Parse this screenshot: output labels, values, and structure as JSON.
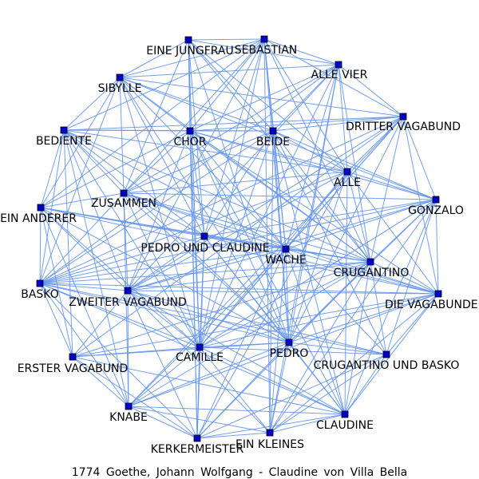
{
  "title": "1774  Goethe,  Johann  Wolfgang  -  Claudine  von  Villa  Bella",
  "colors": {
    "edge": "#6495ED",
    "node": "#0000CC"
  },
  "nodes": [
    {
      "id": "eine_jungfrau",
      "label": "EINE JUNGFRAU"
    },
    {
      "id": "sebastian",
      "label": "SEBASTIAN"
    },
    {
      "id": "alle_vier",
      "label": "ALLE VIER"
    },
    {
      "id": "sibylle",
      "label": "SIBYLLE"
    },
    {
      "id": "dritter_vagabund",
      "label": "DRITTER VAGABUND"
    },
    {
      "id": "bediente",
      "label": "BEDIENTE"
    },
    {
      "id": "chor",
      "label": "CHOR"
    },
    {
      "id": "beide",
      "label": "BEIDE"
    },
    {
      "id": "alle",
      "label": "ALLE"
    },
    {
      "id": "zusammen",
      "label": "ZUSAMMEN"
    },
    {
      "id": "gonzalo",
      "label": "GONZALO"
    },
    {
      "id": "ein_anderer",
      "label": "EIN ANDERER"
    },
    {
      "id": "pedro_und_claudine",
      "label": "PEDRO UND CLAUDINE"
    },
    {
      "id": "wache",
      "label": "WACHE"
    },
    {
      "id": "crugantino",
      "label": "CRUGANTINO"
    },
    {
      "id": "basko",
      "label": "BASKO"
    },
    {
      "id": "zweiter_vagabund",
      "label": "ZWEITER VAGABUND"
    },
    {
      "id": "die_vagabunden",
      "label": "DIE VAGABUNDEN"
    },
    {
      "id": "camille",
      "label": "CAMILLE"
    },
    {
      "id": "pedro",
      "label": "PEDRO"
    },
    {
      "id": "crugantino_und_basko",
      "label": "CRUGANTINO UND BASKO"
    },
    {
      "id": "erster_vagabund",
      "label": "ERSTER VAGABUND"
    },
    {
      "id": "knabe",
      "label": "KNABE"
    },
    {
      "id": "claudine",
      "label": "CLAUDINE"
    },
    {
      "id": "kerkermeister",
      "label": "KERKERMEISTER"
    },
    {
      "id": "ein_kleines",
      "label": "EIN KLEINES"
    }
  ],
  "edges": [
    [
      "sebastian",
      "alle_vier"
    ],
    [
      "sebastian",
      "sibylle"
    ],
    [
      "sebastian",
      "chor"
    ],
    [
      "sebastian",
      "beide"
    ],
    [
      "sebastian",
      "dritter_vagabund"
    ],
    [
      "sebastian",
      "alle"
    ],
    [
      "sebastian",
      "zusammen"
    ],
    [
      "sebastian",
      "bediente"
    ],
    [
      "sebastian",
      "pedro_und_claudine"
    ],
    [
      "sebastian",
      "wache"
    ],
    [
      "sebastian",
      "crugantino"
    ],
    [
      "sebastian",
      "camille"
    ],
    [
      "sebastian",
      "pedro"
    ],
    [
      "sebastian",
      "ein_kleines"
    ],
    [
      "sebastian",
      "zweiter_vagabund"
    ],
    [
      "sebastian",
      "eine_jungfrau"
    ],
    [
      "sebastian",
      "ein_anderer"
    ],
    [
      "eine_jungfrau",
      "sibylle"
    ],
    [
      "eine_jungfrau",
      "chor"
    ],
    [
      "eine_jungfrau",
      "beide"
    ],
    [
      "eine_jungfrau",
      "alle_vier"
    ],
    [
      "eine_jungfrau",
      "pedro_und_claudine"
    ],
    [
      "eine_jungfrau",
      "camille"
    ],
    [
      "eine_jungfrau",
      "zusammen"
    ],
    [
      "eine_jungfrau",
      "crugantino"
    ],
    [
      "eine_jungfrau",
      "alle"
    ],
    [
      "eine_jungfrau",
      "kerkermeister"
    ],
    [
      "eine_jungfrau",
      "pedro"
    ],
    [
      "alle_vier",
      "dritter_vagabund"
    ],
    [
      "alle_vier",
      "beide"
    ],
    [
      "alle_vier",
      "chor"
    ],
    [
      "alle_vier",
      "alle"
    ],
    [
      "alle_vier",
      "wache"
    ],
    [
      "alle_vier",
      "crugantino"
    ],
    [
      "alle_vier",
      "zusammen"
    ],
    [
      "alle_vier",
      "pedro"
    ],
    [
      "alle_vier",
      "camille"
    ],
    [
      "alle_vier",
      "zweiter_vagabund"
    ],
    [
      "alle_vier",
      "ein_kleines"
    ],
    [
      "alle_vier",
      "basko"
    ],
    [
      "alle_vier",
      "sibylle"
    ],
    [
      "sibylle",
      "bediente"
    ],
    [
      "sibylle",
      "chor"
    ],
    [
      "sibylle",
      "beide"
    ],
    [
      "sibylle",
      "zusammen"
    ],
    [
      "sibylle",
      "pedro_und_claudine"
    ],
    [
      "sibylle",
      "wache"
    ],
    [
      "sibylle",
      "crugantino"
    ],
    [
      "sibylle",
      "camille"
    ],
    [
      "sibylle",
      "ein_anderer"
    ],
    [
      "sibylle",
      "basko"
    ],
    [
      "sibylle",
      "pedro"
    ],
    [
      "sibylle",
      "dritter_vagabund"
    ],
    [
      "sibylle",
      "gonzalo"
    ],
    [
      "dritter_vagabund",
      "beide"
    ],
    [
      "dritter_vagabund",
      "alle"
    ],
    [
      "dritter_vagabund",
      "gonzalo"
    ],
    [
      "dritter_vagabund",
      "chor"
    ],
    [
      "dritter_vagabund",
      "wache"
    ],
    [
      "dritter_vagabund",
      "crugantino"
    ],
    [
      "dritter_vagabund",
      "zweiter_vagabund"
    ],
    [
      "dritter_vagabund",
      "erster_vagabund"
    ],
    [
      "dritter_vagabund",
      "die_vagabunden"
    ],
    [
      "dritter_vagabund",
      "pedro"
    ],
    [
      "dritter_vagabund",
      "basko"
    ],
    [
      "dritter_vagabund",
      "bediente"
    ],
    [
      "dritter_vagabund",
      "camille"
    ],
    [
      "dritter_vagabund",
      "knabe"
    ],
    [
      "bediente",
      "chor"
    ],
    [
      "bediente",
      "zusammen"
    ],
    [
      "bediente",
      "ein_anderer"
    ],
    [
      "bediente",
      "basko"
    ],
    [
      "bediente",
      "zweiter_vagabund"
    ],
    [
      "bediente",
      "pedro_und_claudine"
    ],
    [
      "bediente",
      "wache"
    ],
    [
      "bediente",
      "crugantino"
    ],
    [
      "bediente",
      "camille"
    ],
    [
      "bediente",
      "pedro"
    ],
    [
      "bediente",
      "beide"
    ],
    [
      "bediente",
      "erster_vagabund"
    ],
    [
      "bediente",
      "knabe"
    ],
    [
      "bediente",
      "alle"
    ],
    [
      "chor",
      "beide"
    ],
    [
      "chor",
      "alle"
    ],
    [
      "chor",
      "zusammen"
    ],
    [
      "chor",
      "pedro_und_claudine"
    ],
    [
      "chor",
      "wache"
    ],
    [
      "chor",
      "crugantino"
    ],
    [
      "chor",
      "camille"
    ],
    [
      "chor",
      "pedro"
    ],
    [
      "chor",
      "gonzalo"
    ],
    [
      "chor",
      "ein_anderer"
    ],
    [
      "chor",
      "kerkermeister"
    ],
    [
      "chor",
      "claudine"
    ],
    [
      "chor",
      "die_vagabunden"
    ],
    [
      "chor",
      "zweiter_vagabund"
    ],
    [
      "beide",
      "alle"
    ],
    [
      "beide",
      "gonzalo"
    ],
    [
      "beide",
      "zusammen"
    ],
    [
      "beide",
      "wache"
    ],
    [
      "beide",
      "crugantino"
    ],
    [
      "beide",
      "pedro"
    ],
    [
      "beide",
      "camille"
    ],
    [
      "beide",
      "claudine"
    ],
    [
      "beide",
      "crugantino_und_basko"
    ],
    [
      "beide",
      "ein_kleines"
    ],
    [
      "beide",
      "pedro_und_claudine"
    ],
    [
      "beide",
      "basko"
    ],
    [
      "alle",
      "gonzalo"
    ],
    [
      "alle",
      "wache"
    ],
    [
      "alle",
      "crugantino"
    ],
    [
      "alle",
      "pedro"
    ],
    [
      "alle",
      "camille"
    ],
    [
      "alle",
      "zusammen"
    ],
    [
      "alle",
      "die_vagabunden"
    ],
    [
      "alle",
      "kerkermeister"
    ],
    [
      "alle",
      "basko"
    ],
    [
      "alle",
      "claudine"
    ],
    [
      "alle",
      "zweiter_vagabund"
    ],
    [
      "zusammen",
      "ein_anderer"
    ],
    [
      "zusammen",
      "basko"
    ],
    [
      "zusammen",
      "zweiter_vagabund"
    ],
    [
      "zusammen",
      "pedro_und_claudine"
    ],
    [
      "zusammen",
      "wache"
    ],
    [
      "zusammen",
      "crugantino"
    ],
    [
      "zusammen",
      "camille"
    ],
    [
      "zusammen",
      "pedro"
    ],
    [
      "zusammen",
      "knabe"
    ],
    [
      "zusammen",
      "gonzalo"
    ],
    [
      "zusammen",
      "die_vagabunden"
    ],
    [
      "gonzalo",
      "crugantino"
    ],
    [
      "gonzalo",
      "die_vagabunden"
    ],
    [
      "gonzalo",
      "wache"
    ],
    [
      "gonzalo",
      "pedro"
    ],
    [
      "gonzalo",
      "camille"
    ],
    [
      "gonzalo",
      "claudine"
    ],
    [
      "gonzalo",
      "crugantino_und_basko"
    ],
    [
      "gonzalo",
      "zweiter_vagabund"
    ],
    [
      "gonzalo",
      "basko"
    ],
    [
      "gonzalo",
      "pedro_und_claudine"
    ],
    [
      "gonzalo",
      "ein_kleines"
    ],
    [
      "ein_anderer",
      "basko"
    ],
    [
      "ein_anderer",
      "zweiter_vagabund"
    ],
    [
      "ein_anderer",
      "erster_vagabund"
    ],
    [
      "ein_anderer",
      "pedro_und_claudine"
    ],
    [
      "ein_anderer",
      "wache"
    ],
    [
      "ein_anderer",
      "crugantino"
    ],
    [
      "ein_anderer",
      "camille"
    ],
    [
      "ein_anderer",
      "knabe"
    ],
    [
      "ein_anderer",
      "pedro"
    ],
    [
      "ein_anderer",
      "die_vagabunden"
    ],
    [
      "pedro_und_claudine",
      "wache"
    ],
    [
      "pedro_und_claudine",
      "crugantino"
    ],
    [
      "pedro_und_claudine",
      "camille"
    ],
    [
      "pedro_und_claudine",
      "pedro"
    ],
    [
      "pedro_und_claudine",
      "claudine"
    ],
    [
      "pedro_und_claudine",
      "zweiter_vagabund"
    ],
    [
      "pedro_und_claudine",
      "kerkermeister"
    ],
    [
      "pedro_und_claudine",
      "die_vagabunden"
    ],
    [
      "pedro_und_claudine",
      "basko"
    ],
    [
      "wache",
      "crugantino"
    ],
    [
      "wache",
      "die_vagabunden"
    ],
    [
      "wache",
      "pedro"
    ],
    [
      "wache",
      "camille"
    ],
    [
      "wache",
      "claudine"
    ],
    [
      "wache",
      "crugantino_und_basko"
    ],
    [
      "wache",
      "zweiter_vagabund"
    ],
    [
      "wache",
      "basko"
    ],
    [
      "wache",
      "kerkermeister"
    ],
    [
      "wache",
      "ein_kleines"
    ],
    [
      "wache",
      "knabe"
    ],
    [
      "crugantino",
      "die_vagabunden"
    ],
    [
      "crugantino",
      "crugantino_und_basko"
    ],
    [
      "crugantino",
      "pedro"
    ],
    [
      "crugantino",
      "camille"
    ],
    [
      "crugantino",
      "claudine"
    ],
    [
      "crugantino",
      "basko"
    ],
    [
      "crugantino",
      "zweiter_vagabund"
    ],
    [
      "crugantino",
      "ein_kleines"
    ],
    [
      "crugantino",
      "kerkermeister"
    ],
    [
      "crugantino",
      "erster_vagabund"
    ],
    [
      "crugantino",
      "knabe"
    ],
    [
      "basko",
      "zweiter_vagabund"
    ],
    [
      "basko",
      "erster_vagabund"
    ],
    [
      "basko",
      "knabe"
    ],
    [
      "basko",
      "camille"
    ],
    [
      "basko",
      "pedro"
    ],
    [
      "basko",
      "kerkermeister"
    ],
    [
      "basko",
      "crugantino_und_basko"
    ],
    [
      "basko",
      "claudine"
    ],
    [
      "basko",
      "die_vagabunden"
    ],
    [
      "zweiter_vagabund",
      "erster_vagabund"
    ],
    [
      "zweiter_vagabund",
      "knabe"
    ],
    [
      "zweiter_vagabund",
      "camille"
    ],
    [
      "zweiter_vagabund",
      "pedro"
    ],
    [
      "zweiter_vagabund",
      "kerkermeister"
    ],
    [
      "zweiter_vagabund",
      "die_vagabunden"
    ],
    [
      "zweiter_vagabund",
      "claudine"
    ],
    [
      "zweiter_vagabund",
      "ein_kleines"
    ],
    [
      "zweiter_vagabund",
      "crugantino_und_basko"
    ],
    [
      "die_vagabunden",
      "crugantino_und_basko"
    ],
    [
      "die_vagabunden",
      "claudine"
    ],
    [
      "die_vagabunden",
      "pedro"
    ],
    [
      "die_vagabunden",
      "camille"
    ],
    [
      "die_vagabunden",
      "ein_kleines"
    ],
    [
      "die_vagabunden",
      "erster_vagabund"
    ],
    [
      "die_vagabunden",
      "knabe"
    ],
    [
      "camille",
      "pedro"
    ],
    [
      "camille",
      "kerkermeister"
    ],
    [
      "camille",
      "claudine"
    ],
    [
      "camille",
      "crugantino_und_basko"
    ],
    [
      "camille",
      "erster_vagabund"
    ],
    [
      "camille",
      "knabe"
    ],
    [
      "camille",
      "ein_kleines"
    ],
    [
      "pedro",
      "claudine"
    ],
    [
      "pedro",
      "crugantino_und_basko"
    ],
    [
      "pedro",
      "kerkermeister"
    ],
    [
      "pedro",
      "ein_kleines"
    ],
    [
      "pedro",
      "erster_vagabund"
    ],
    [
      "pedro",
      "knabe"
    ],
    [
      "crugantino_und_basko",
      "claudine"
    ],
    [
      "crugantino_und_basko",
      "ein_kleines"
    ],
    [
      "crugantino_und_basko",
      "kerkermeister"
    ],
    [
      "erster_vagabund",
      "knabe"
    ],
    [
      "erster_vagabund",
      "kerkermeister"
    ],
    [
      "erster_vagabund",
      "claudine"
    ],
    [
      "knabe",
      "kerkermeister"
    ],
    [
      "knabe",
      "ein_kleines"
    ],
    [
      "knabe",
      "claudine"
    ],
    [
      "claudine",
      "ein_kleines"
    ],
    [
      "claudine",
      "kerkermeister"
    ],
    [
      "kerkermeister",
      "ein_kleines"
    ]
  ]
}
